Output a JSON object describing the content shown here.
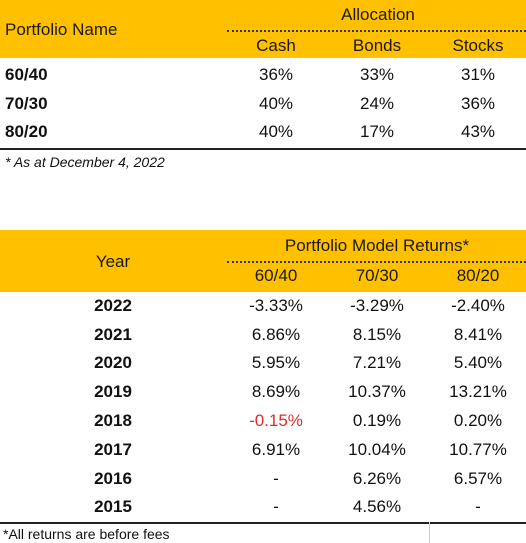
{
  "table1": {
    "header": {
      "name_label": "Portfolio Name",
      "group_label": "Allocation",
      "columns": [
        "Cash",
        "Bonds",
        "Stocks"
      ]
    },
    "rows": [
      {
        "name": "60/40",
        "values": [
          "36%",
          "33%",
          "31%"
        ]
      },
      {
        "name": "70/30",
        "values": [
          "40%",
          "24%",
          "36%"
        ]
      },
      {
        "name": "80/20",
        "values": [
          "40%",
          "17%",
          "43%"
        ]
      }
    ],
    "footnote": "* As at December 4, 2022"
  },
  "table2": {
    "header": {
      "year_label": "Year",
      "group_label": "Portfolio Model Returns*",
      "columns": [
        "60/40",
        "70/30",
        "80/20"
      ]
    },
    "rows": [
      {
        "year": "2022",
        "values": [
          "-3.33%",
          "-3.29%",
          "-2.40%"
        ]
      },
      {
        "year": "2021",
        "values": [
          "6.86%",
          "8.15%",
          "8.41%"
        ]
      },
      {
        "year": "2020",
        "values": [
          "5.95%",
          "7.21%",
          "5.40%"
        ]
      },
      {
        "year": "2019",
        "values": [
          "8.69%",
          "10.37%",
          "13.21%"
        ]
      },
      {
        "year": "2018",
        "values": [
          "-0.15%",
          "0.19%",
          "0.20%"
        ]
      },
      {
        "year": "2017",
        "values": [
          "6.91%",
          "10.04%",
          "10.77%"
        ]
      },
      {
        "year": "2016",
        "values": [
          "-",
          "6.26%",
          "6.57%"
        ]
      },
      {
        "year": "2015",
        "values": [
          "-",
          "4.56%",
          "-"
        ]
      }
    ],
    "footnote": "*All returns are before fees"
  },
  "colors": {
    "header_background": "#FFC000",
    "negative_highlight": "#e32b2b"
  }
}
